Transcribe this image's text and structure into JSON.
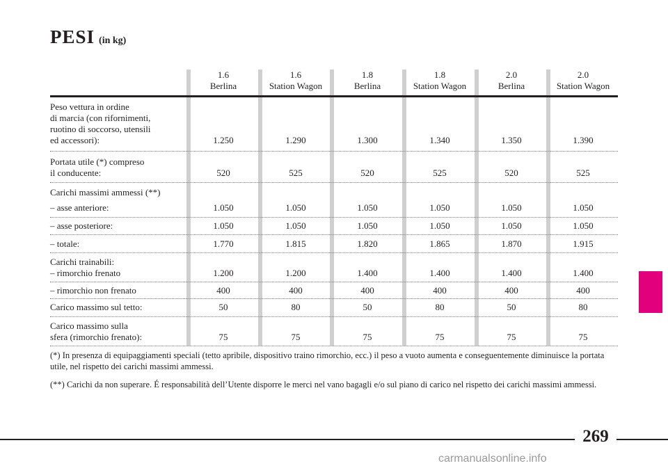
{
  "title": "PESI",
  "title_unit": "(in kg)",
  "columns": [
    {
      "line1": "1.6",
      "line2": "Berlina"
    },
    {
      "line1": "1.6",
      "line2": "Station Wagon"
    },
    {
      "line1": "1.8",
      "line2": "Berlina"
    },
    {
      "line1": "1.8",
      "line2": "Station Wagon"
    },
    {
      "line1": "2.0",
      "line2": "Berlina"
    },
    {
      "line1": "2.0",
      "line2": "Station Wagon"
    }
  ],
  "rows": [
    {
      "label": [
        "Peso vettura in ordine",
        "di marcia (con rifornimenti,",
        "ruotino di soccorso, utensili",
        "ed accessori):"
      ],
      "values": [
        "1.250",
        "1.290",
        "1.300",
        "1.340",
        "1.350",
        "1.390"
      ]
    },
    {
      "label": [
        "Portata utile (*) compreso",
        "il conducente:"
      ],
      "values": [
        "520",
        "525",
        "520",
        "525",
        "520",
        "525"
      ]
    },
    {
      "label": [
        "Carichi massimi ammessi (**)",
        "– asse anteriore:"
      ],
      "values": [
        "1.050",
        "1.050",
        "1.050",
        "1.050",
        "1.050",
        "1.050"
      ]
    },
    {
      "label": [
        "– asse posteriore:"
      ],
      "values": [
        "1.050",
        "1.050",
        "1.050",
        "1.050",
        "1.050",
        "1.050"
      ]
    },
    {
      "label": [
        "– totale:"
      ],
      "values": [
        "1.770",
        "1.815",
        "1.820",
        "1.865",
        "1.870",
        "1.915"
      ]
    },
    {
      "label": [
        "Carichi trainabili:",
        "– rimorchio frenato"
      ],
      "values": [
        "1.200",
        "1.200",
        "1.400",
        "1.400",
        "1.400",
        "1.400"
      ]
    },
    {
      "label": [
        "– rimorchio non frenato"
      ],
      "values": [
        "400",
        "400",
        "400",
        "400",
        "400",
        "400"
      ]
    },
    {
      "label": [
        "Carico massimo sul tetto:"
      ],
      "values": [
        "50",
        "80",
        "50",
        "80",
        "50",
        "80"
      ]
    },
    {
      "label": [
        "Carico massimo sulla",
        "sfera (rimorchio frenato):"
      ],
      "values": [
        "75",
        "75",
        "75",
        "75",
        "75",
        "75"
      ]
    }
  ],
  "notes": [
    "(*) In presenza di equipaggiamenti speciali (tetto apribile, dispositivo traino rimorchio, ecc.) il peso a vuoto aumenta e conseguentemente diminuisce la portata utile, nel rispetto dei carichi massimi ammessi.",
    "(**) Carichi da non superare. É responsabilità dell’Utente disporre le merci nel vano bagagli e/o sul piano di carico nel rispetto dei carichi massimi ammessi."
  ],
  "page_number": "269",
  "watermark": "carmanualsonline.info",
  "colors": {
    "accent_tab": "#e3007d",
    "column_stripe": "#cfcfcf"
  }
}
